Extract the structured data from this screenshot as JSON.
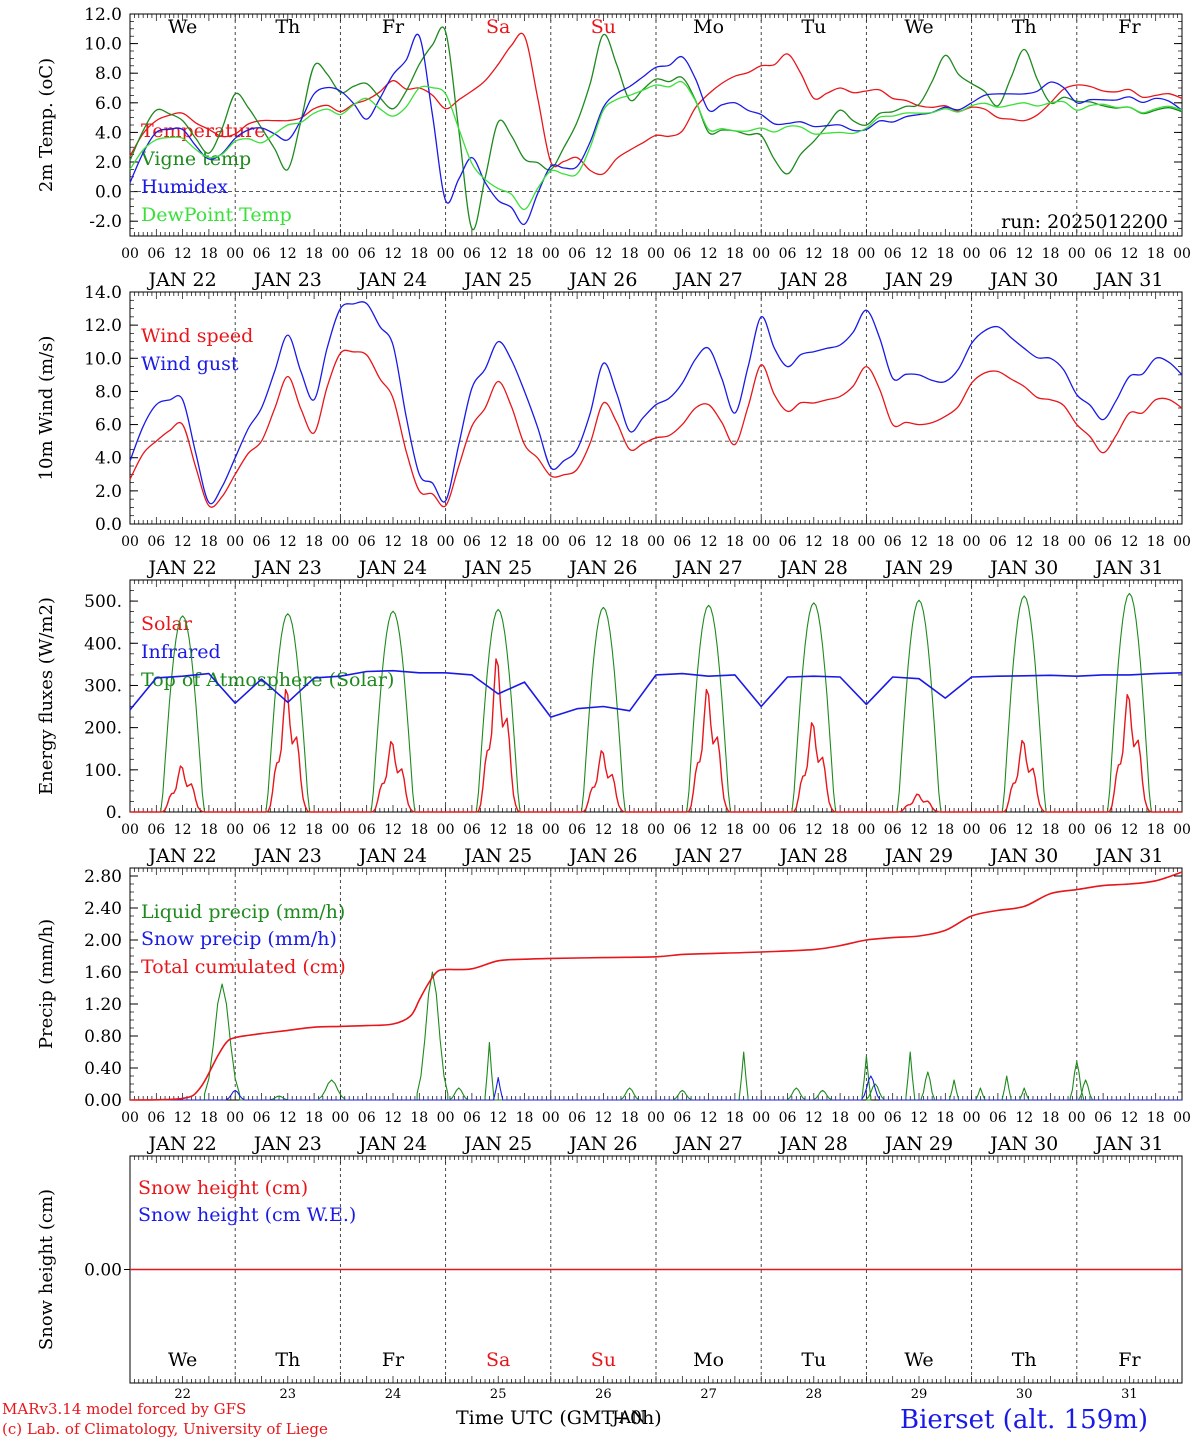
{
  "footer": {
    "credit1": "MARv3.14 model forced by GFS",
    "credit2": "(c) Lab. of Climatology, University of Liege",
    "xlabel": "Time UTC (GMT+0h)",
    "overlap": "JAN",
    "station": "Bierset (alt. 159m)"
  },
  "colors": {
    "red": "#e8161b",
    "blue": "#1a1ae6",
    "green": "#1e8a1e",
    "lightgreen": "#39e039",
    "grid": "#555555"
  },
  "days": [
    "We",
    "Th",
    "Fr",
    "Sa",
    "Su",
    "Mo",
    "Tu",
    "We",
    "Th",
    "Fr"
  ],
  "day_colors": [
    "#000",
    "#000",
    "#000",
    "#e8161b",
    "#e8161b",
    "#000",
    "#000",
    "#000",
    "#000",
    "#000"
  ],
  "date_labels": [
    "JAN 22",
    "JAN 23",
    "JAN 24",
    "JAN 25",
    "JAN 26",
    "JAN 27",
    "JAN 28",
    "JAN 29",
    "JAN 30",
    "JAN 31"
  ],
  "bottom_day_numbers": [
    "22",
    "23",
    "24",
    "25",
    "26",
    "27",
    "28",
    "29",
    "30",
    "31"
  ],
  "hour_ticks": [
    "00",
    "06",
    "12",
    "18"
  ],
  "chart_data": [
    {
      "type": "line",
      "ylabel": "2m Temp. (oC)",
      "ylim": [
        -3,
        12
      ],
      "yticks": [
        "-2.0",
        "0.0",
        "2.0",
        "4.0",
        "6.0",
        "8.0",
        "10.0",
        "12.0"
      ],
      "yticks_values": [
        -2,
        0,
        2,
        4,
        6,
        8,
        10,
        12
      ],
      "refline": 0,
      "annotation": "run: 2025012200",
      "x_hours": [
        0,
        6,
        12,
        18,
        24,
        30,
        36,
        42,
        48,
        54,
        60,
        66,
        72,
        78,
        84,
        90,
        96,
        102,
        108,
        114,
        120,
        126,
        132,
        138,
        144,
        150,
        156,
        162,
        168,
        174,
        180,
        186,
        192,
        198,
        204,
        210,
        216,
        222,
        228,
        234,
        240
      ],
      "series": [
        {
          "name": "Temperature",
          "color": "red",
          "values": [
            2.4,
            4.8,
            5.3,
            4.2,
            3.9,
            4.8,
            4.8,
            5.6,
            5.4,
            6.2,
            7.5,
            7.0,
            5.6,
            6.8,
            8.6,
            10.5,
            2.0,
            2.3,
            1.2,
            2.8,
            3.8,
            4.1,
            6.6,
            7.8,
            8.5,
            9.3,
            6.3,
            7.0,
            6.8,
            6.3,
            5.8,
            5.8,
            5.7,
            5.0,
            4.8,
            6.0,
            7.2,
            6.8,
            6.9,
            6.5,
            6.3
          ]
        },
        {
          "name": "Vigne temp",
          "color": "green",
          "values": [
            2.1,
            5.5,
            4.8,
            2.6,
            6.6,
            4.3,
            1.5,
            8.5,
            6.7,
            7.3,
            5.6,
            8.6,
            10.8,
            -2.5,
            4.7,
            2.2,
            1.5,
            4.7,
            10.6,
            6.2,
            7.6,
            7.7,
            4.0,
            4.1,
            3.8,
            1.2,
            3.4,
            5.5,
            4.5,
            5.4,
            5.9,
            9.2,
            7.3,
            5.8,
            9.6,
            6.0,
            6.1,
            5.8,
            5.7,
            5.5,
            5.4
          ]
        },
        {
          "name": "Humidex",
          "color": "blue",
          "values": [
            0.6,
            4.0,
            4.2,
            2.2,
            3.6,
            4.3,
            3.5,
            6.6,
            6.8,
            4.9,
            7.9,
            10.5,
            -0.6,
            2.3,
            -0.6,
            -2.2,
            1.7,
            1.7,
            5.7,
            7.1,
            8.4,
            9.1,
            5.5,
            6.0,
            5.2,
            4.6,
            4.4,
            4.5,
            4.2,
            4.7,
            5.2,
            5.7,
            6.0,
            6.6,
            6.6,
            7.4,
            6.0,
            6.2,
            6.4,
            6.3,
            5.5
          ]
        },
        {
          "name": "DewPoint Temp",
          "color": "lightgreen",
          "values": [
            1.5,
            3.5,
            3.6,
            2.3,
            3.4,
            3.3,
            4.5,
            5.3,
            5.2,
            6.3,
            5.1,
            7.0,
            6.6,
            1.9,
            0.2,
            -1.2,
            1.4,
            1.2,
            5.5,
            6.5,
            7.2,
            7.4,
            4.2,
            4.1,
            4.3,
            4.4,
            3.9,
            4.0,
            4.3,
            5.1,
            5.3,
            5.6,
            5.8,
            5.7,
            6.0,
            6.0,
            5.5,
            5.9,
            5.7,
            5.6,
            5.5
          ]
        }
      ]
    },
    {
      "type": "line",
      "ylabel": "10m Wind (m/s)",
      "ylim": [
        0,
        14
      ],
      "yticks": [
        "0.0",
        "2.0",
        "4.0",
        "6.0",
        "8.0",
        "10.0",
        "12.0",
        "14.0"
      ],
      "yticks_values": [
        0,
        2,
        4,
        6,
        8,
        10,
        12,
        14
      ],
      "refline": 5,
      "x_hours": [
        0,
        6,
        12,
        18,
        24,
        30,
        36,
        42,
        48,
        54,
        60,
        66,
        72,
        78,
        84,
        90,
        96,
        102,
        108,
        114,
        120,
        126,
        132,
        138,
        144,
        150,
        156,
        162,
        168,
        174,
        180,
        186,
        192,
        198,
        204,
        210,
        216,
        222,
        228,
        234,
        240
      ],
      "series": [
        {
          "name": "Wind speed",
          "color": "red",
          "values": [
            2.7,
            5.0,
            6.0,
            1.1,
            3.0,
            5.0,
            8.9,
            5.5,
            10.3,
            10.2,
            7.6,
            2.0,
            1.1,
            5.9,
            8.6,
            4.8,
            2.9,
            3.3,
            7.3,
            4.5,
            5.2,
            6.0,
            7.2,
            4.8,
            9.6,
            6.8,
            7.3,
            7.7,
            9.5,
            6.0,
            6.0,
            6.5,
            8.5,
            9.2,
            8.3,
            7.5,
            6.0,
            4.3,
            6.7,
            7.5,
            7.0
          ]
        },
        {
          "name": "Wind gust",
          "color": "blue",
          "values": [
            3.8,
            7.2,
            7.5,
            1.3,
            4.0,
            7.0,
            11.4,
            7.5,
            13.0,
            13.3,
            10.8,
            3.0,
            1.4,
            8.2,
            11.0,
            8.0,
            3.4,
            4.5,
            9.7,
            5.6,
            7.2,
            8.5,
            10.6,
            6.7,
            12.5,
            9.5,
            10.4,
            10.8,
            12.9,
            8.8,
            9.0,
            8.6,
            10.9,
            11.9,
            10.6,
            10.0,
            7.8,
            6.3,
            8.9,
            10.0,
            9.0
          ]
        }
      ]
    },
    {
      "type": "line",
      "ylabel": "Energy fluxes (W/m2)",
      "ylim": [
        0,
        550
      ],
      "yticks": [
        "0.",
        "100.",
        "200.",
        "300.",
        "400.",
        "500."
      ],
      "yticks_values": [
        0,
        100,
        200,
        300,
        400,
        500
      ],
      "series": [
        {
          "name": "Solar",
          "color": "red",
          "peaks": [
            90,
            240,
            138,
            300,
            120,
            240,
            175,
            35,
            140,
            230
          ]
        },
        {
          "name": "Infrared",
          "color": "blue",
          "x_hours": [
            0,
            6,
            12,
            18,
            24,
            30,
            36,
            42,
            48,
            54,
            60,
            66,
            72,
            78,
            84,
            90,
            96,
            102,
            108,
            114,
            120,
            126,
            132,
            138,
            144,
            150,
            156,
            162,
            168,
            174,
            180,
            186,
            192,
            198,
            204,
            210,
            216,
            222,
            228,
            234,
            240
          ],
          "values": [
            242,
            318,
            322,
            328,
            258,
            315,
            260,
            318,
            322,
            333,
            335,
            330,
            330,
            325,
            280,
            308,
            225,
            245,
            250,
            240,
            325,
            328,
            322,
            325,
            250,
            320,
            322,
            320,
            255,
            320,
            316,
            270,
            320,
            322,
            323,
            324,
            322,
            325,
            325,
            328,
            330
          ]
        },
        {
          "name": "Top of Atmosphere (Solar)",
          "color": "green",
          "peaks": [
            465,
            470,
            476,
            480,
            485,
            490,
            496,
            502,
            512,
            518
          ]
        }
      ]
    },
    {
      "type": "line",
      "ylabel": "Precip (mm/h)",
      "ylim": [
        0,
        2.9
      ],
      "yticks": [
        "0.00",
        "0.40",
        "0.80",
        "1.20",
        "1.60",
        "2.00",
        "2.40",
        "2.80"
      ],
      "yticks_values": [
        0,
        0.4,
        0.8,
        1.2,
        1.6,
        2.0,
        2.4,
        2.8
      ],
      "series": [
        {
          "name": "Liquid precip (mm/h)",
          "color": "green",
          "events": [
            [
              21,
              1.45,
              4
            ],
            [
              34,
              0.05,
              2
            ],
            [
              46,
              0.25,
              3
            ],
            [
              69,
              1.6,
              3.5
            ],
            [
              75,
              0.15,
              2
            ],
            [
              82,
              0.72,
              1
            ],
            [
              114,
              0.15,
              2
            ],
            [
              126,
              0.12,
              2
            ],
            [
              140,
              0.6,
              1
            ],
            [
              152,
              0.15,
              2
            ],
            [
              158,
              0.12,
              2
            ],
            [
              168,
              0.55,
              1
            ],
            [
              170,
              0.2,
              2
            ],
            [
              178,
              0.6,
              1
            ],
            [
              182,
              0.35,
              1.5
            ],
            [
              188,
              0.25,
              1
            ],
            [
              194,
              0.15,
              1
            ],
            [
              200,
              0.3,
              1
            ],
            [
              204,
              0.15,
              1
            ],
            [
              216,
              0.48,
              1.5
            ],
            [
              218,
              0.25,
              1.5
            ]
          ]
        },
        {
          "name": "Snow precip (mm/h)",
          "color": "blue",
          "events": [
            [
              24,
              0.12,
              2
            ],
            [
              84,
              0.28,
              1
            ],
            [
              169,
              0.3,
              2
            ]
          ]
        },
        {
          "name": "Total cumulated (cm)",
          "color": "red",
          "x_hours": [
            0,
            12,
            16,
            20,
            22,
            24,
            30,
            36,
            42,
            48,
            54,
            60,
            64,
            66,
            68,
            70,
            72,
            78,
            84,
            90,
            96,
            108,
            120,
            126,
            132,
            144,
            156,
            162,
            168,
            174,
            180,
            186,
            192,
            198,
            204,
            210,
            216,
            222,
            228,
            234,
            240
          ],
          "values": [
            0,
            0.02,
            0.15,
            0.55,
            0.72,
            0.78,
            0.83,
            0.87,
            0.91,
            0.92,
            0.93,
            0.95,
            1.05,
            1.25,
            1.45,
            1.6,
            1.63,
            1.64,
            1.74,
            1.76,
            1.77,
            1.78,
            1.79,
            1.82,
            1.83,
            1.85,
            1.88,
            1.93,
            2.0,
            2.03,
            2.05,
            2.12,
            2.3,
            2.37,
            2.42,
            2.58,
            2.63,
            2.68,
            2.7,
            2.74,
            2.85
          ]
        }
      ]
    },
    {
      "type": "line",
      "ylabel": "Snow height (cm)",
      "ylim": [
        -1,
        1
      ],
      "yticks": [
        "0.00"
      ],
      "yticks_values": [
        0
      ],
      "series": [
        {
          "name": "Snow height (cm)",
          "color": "red",
          "values": [
            0,
            0
          ]
        },
        {
          "name": "Snow height (cm W.E.)",
          "color": "blue",
          "values": []
        }
      ]
    }
  ]
}
